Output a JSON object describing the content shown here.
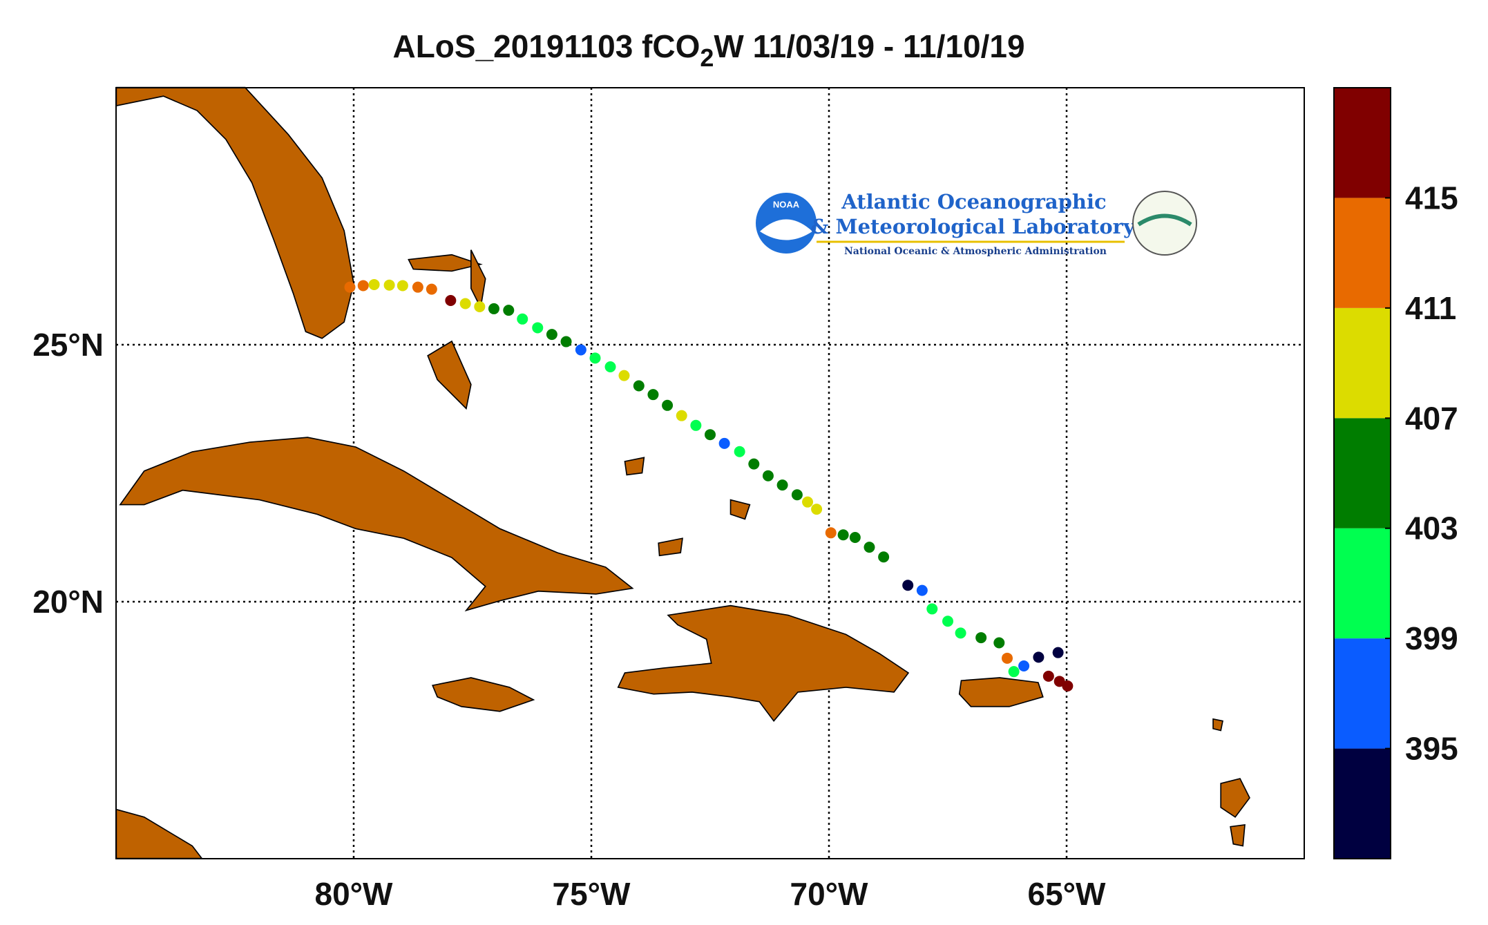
{
  "chart_data": {
    "type": "scatter",
    "title": "ALoS_20191103 fCO",
    "title_subscript": "2",
    "title_rest": "W 11/03/19 - 11/10/19",
    "logo": {
      "badge": "NOAA",
      "line1": "Atlantic Oceanographic",
      "line2": "& Meteorological Laboratory",
      "line3": "National Oceanic & Atmospheric Administration"
    },
    "xlim": [
      -85,
      -60
    ],
    "ylim": [
      15,
      30
    ],
    "xticks": [
      {
        "value": -80,
        "label": "80°W"
      },
      {
        "value": -75,
        "label": "75°W"
      },
      {
        "value": -70,
        "label": "70°W"
      },
      {
        "value": -65,
        "label": "65°W"
      }
    ],
    "yticks": [
      {
        "value": 20,
        "label": "20°N"
      },
      {
        "value": 25,
        "label": "25°N"
      }
    ],
    "grid": true,
    "clim": [
      391,
      419
    ],
    "cticks": [
      395,
      399,
      403,
      407,
      411,
      415
    ],
    "colors": [
      "#000040",
      "#0a5cff",
      "#00ff50",
      "#007d00",
      "#dcdc00",
      "#e86a00",
      "#800000"
    ],
    "x": [
      -80.08,
      -79.8,
      -79.57,
      -79.25,
      -78.97,
      -78.65,
      -78.36,
      -77.96,
      -77.65,
      -77.35,
      -77.05,
      -76.74,
      -76.45,
      -76.13,
      -75.83,
      -75.53,
      -75.22,
      -74.92,
      -74.6,
      -74.31,
      -74.0,
      -73.7,
      -73.4,
      -73.1,
      -72.8,
      -72.5,
      -72.2,
      -71.88,
      -71.58,
      -71.28,
      -70.98,
      -70.67,
      -70.45,
      -70.26,
      -69.96,
      -69.7,
      -69.45,
      -69.15,
      -68.85,
      -68.34,
      -68.04,
      -67.83,
      -67.5,
      -67.23,
      -66.8,
      -66.42,
      -66.25,
      -66.11,
      -65.9,
      -65.59,
      -65.18,
      -65.38,
      -65.15,
      -64.98
    ],
    "y": [
      26.12,
      26.15,
      26.17,
      26.16,
      26.15,
      26.12,
      26.08,
      25.86,
      25.8,
      25.74,
      25.7,
      25.67,
      25.5,
      25.33,
      25.2,
      25.06,
      24.9,
      24.74,
      24.57,
      24.4,
      24.2,
      24.03,
      23.82,
      23.62,
      23.43,
      23.25,
      23.08,
      22.92,
      22.68,
      22.45,
      22.27,
      22.08,
      21.94,
      21.8,
      21.34,
      21.3,
      21.25,
      21.06,
      20.87,
      20.32,
      20.22,
      19.86,
      19.62,
      19.39,
      19.3,
      19.2,
      18.9,
      18.64,
      18.75,
      18.92,
      19.01,
      18.55,
      18.45,
      18.36
    ],
    "values": [
      413,
      412,
      409,
      410,
      409,
      413,
      414,
      417,
      409,
      410,
      405,
      405,
      402,
      401,
      404,
      405,
      398,
      401,
      402,
      409,
      406,
      405,
      404,
      409,
      402,
      405,
      397,
      401,
      406,
      405,
      406,
      405,
      409,
      410,
      413,
      406,
      405,
      406,
      405,
      393,
      397,
      401,
      402,
      401,
      405,
      405,
      413,
      401,
      397,
      393,
      393,
      417,
      416,
      417
    ]
  }
}
